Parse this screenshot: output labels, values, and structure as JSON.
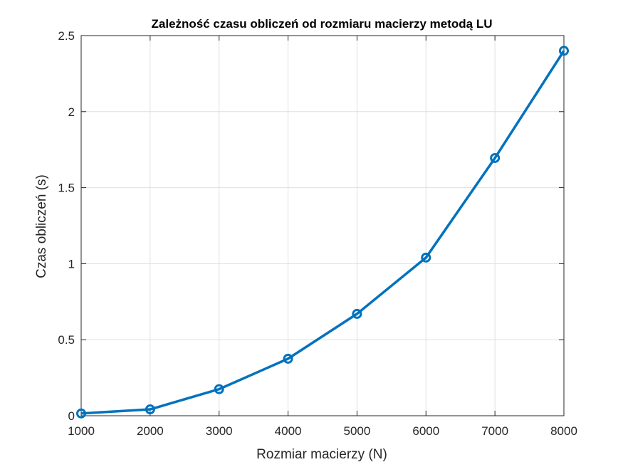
{
  "chart_data": {
    "type": "line",
    "title": "Zależność czasu obliczeń od rozmiaru macierzy metodą LU",
    "xlabel": "Rozmiar macierzy (N)",
    "ylabel": "Czas obliczeń (s)",
    "x": [
      1000,
      2000,
      3000,
      4000,
      5000,
      6000,
      7000,
      8000
    ],
    "series": [
      {
        "values": [
          0.015,
          0.042,
          0.175,
          0.375,
          0.67,
          1.04,
          1.695,
          2.4
        ]
      }
    ],
    "xlim": [
      1000,
      8000
    ],
    "ylim": [
      0,
      2.5
    ],
    "xticks": [
      1000,
      2000,
      3000,
      4000,
      5000,
      6000,
      7000,
      8000
    ],
    "xtick_labels": [
      "1000",
      "2000",
      "3000",
      "4000",
      "5000",
      "6000",
      "7000",
      "8000"
    ],
    "yticks": [
      0,
      0.5,
      1,
      1.5,
      2,
      2.5
    ],
    "ytick_labels": [
      "0",
      "0.5",
      "1",
      "1.5",
      "2",
      "2.5"
    ],
    "grid": true,
    "marker": "circle",
    "line_color": "#0072BD",
    "grid_color": "#dfdfdf",
    "axis_color": "#262626"
  }
}
